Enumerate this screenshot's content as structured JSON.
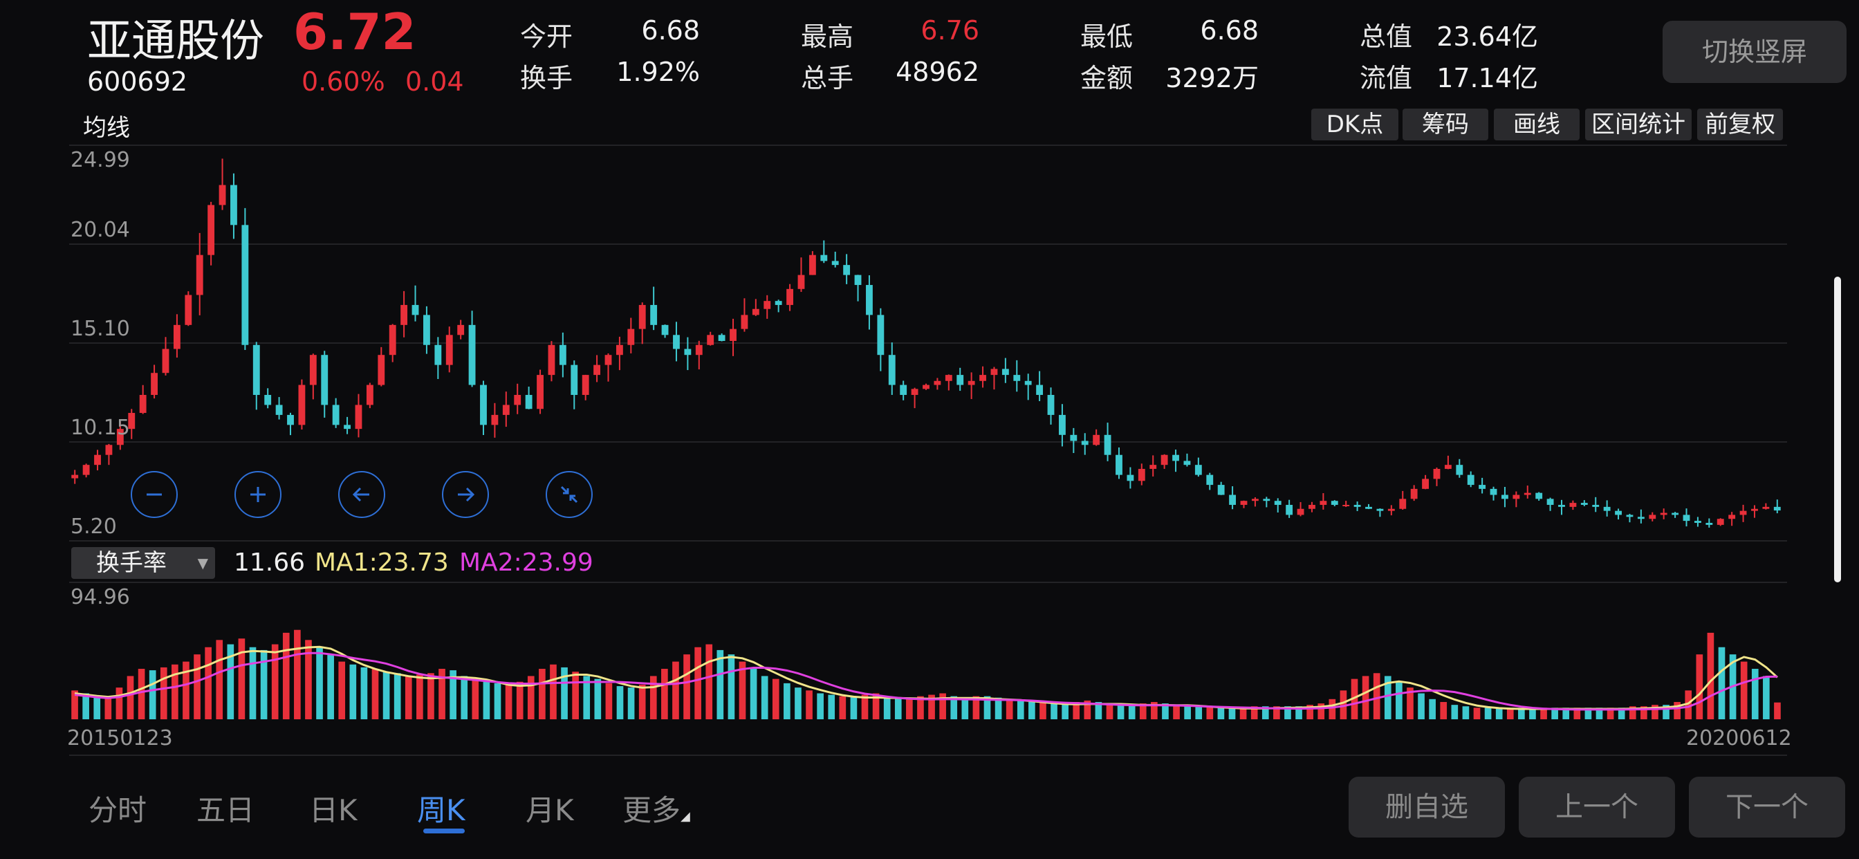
{
  "stock": {
    "name": "亚通股份",
    "price": "6.72",
    "code": "600692",
    "change_pct": "0.60%",
    "change": "0.04"
  },
  "quote": {
    "open_label": "今开",
    "open": "6.68",
    "high_label": "最高",
    "high": "6.76",
    "low_label": "最低",
    "low": "6.68",
    "mktcap_label": "总值",
    "mktcap": "23.64亿",
    "turnover_label": "换手",
    "turnover": "1.92%",
    "volume_label": "总手",
    "volume": "48962",
    "amount_label": "金额",
    "amount": "3292万",
    "float_label": "流值",
    "float": "17.14亿"
  },
  "switch_label": "切换竖屏",
  "ma_label": "均线",
  "tools": [
    "DK点",
    "筹码",
    "画线",
    "区间统计",
    "前复权"
  ],
  "price_axis": [
    "24.99",
    "20.04",
    "15.10",
    "10.15",
    "5.20"
  ],
  "controls": {
    "zoom_out": "minus-circle-icon",
    "zoom_in": "plus-circle-icon",
    "pan_left": "arrow-left-circle-icon",
    "pan_right": "arrow-right-circle-icon",
    "collapse": "collapse-circle-icon"
  },
  "indicator": {
    "name": "换手率",
    "value": "11.66",
    "ma1": "MA1:23.73",
    "ma2": "MA2:23.99",
    "max": "94.96"
  },
  "dates": {
    "start": "20150123",
    "end": "20200612"
  },
  "tabs": [
    "分时",
    "五日",
    "日K",
    "周K",
    "月K",
    "更多"
  ],
  "active_tab": "周K",
  "bottom_buttons": {
    "remove": "删自选",
    "prev": "上一个",
    "next": "下一个"
  },
  "colors": {
    "up": "#e8303a",
    "down": "#3ec9d0",
    "ma1": "#f0e48a",
    "ma2": "#e040e0",
    "accent": "#2e6fd6"
  },
  "chart_data": {
    "type": "candlestick",
    "period": "weekly",
    "ylim": [
      5.2,
      24.99
    ],
    "x_start": "20150123",
    "x_end": "20200612",
    "close_series": [
      8.5,
      9.0,
      9.5,
      10.0,
      10.8,
      11.6,
      12.5,
      13.6,
      14.8,
      16.0,
      17.5,
      19.5,
      22.0,
      23.0,
      21.0,
      15.0,
      12.5,
      12.0,
      11.5,
      11.0,
      13.0,
      14.5,
      12.0,
      11.0,
      10.8,
      12.0,
      13.0,
      14.5,
      16.0,
      17.0,
      16.5,
      15.0,
      14.0,
      15.5,
      16.0,
      13.0,
      11.0,
      11.5,
      12.0,
      12.5,
      11.8,
      13.5,
      15.0,
      14.0,
      12.5,
      13.5,
      14.0,
      14.5,
      15.0,
      15.8,
      17.0,
      16.0,
      15.5,
      14.8,
      14.5,
      15.0,
      15.5,
      15.2,
      15.8,
      16.5,
      16.8,
      17.2,
      17.0,
      17.8,
      18.5,
      19.5,
      19.2,
      19.0,
      18.5,
      18.0,
      16.5,
      14.5,
      13.0,
      12.5,
      12.8,
      13.0,
      13.2,
      13.5,
      13.0,
      13.2,
      13.5,
      13.8,
      13.5,
      13.2,
      13.0,
      12.5,
      11.5,
      10.5,
      10.2,
      10.0,
      10.5,
      9.5,
      8.5,
      8.2,
      8.8,
      9.0,
      9.5,
      9.2,
      9.0,
      8.5,
      8.0,
      7.5,
      7.0,
      7.2,
      7.3,
      7.2,
      7.0,
      6.5,
      6.8,
      7.0,
      7.2,
      7.0,
      7.0,
      6.9,
      6.8,
      6.7,
      6.8,
      7.3,
      7.8,
      8.3,
      8.8,
      9.0,
      8.5,
      8.0,
      7.8,
      7.5,
      7.3,
      7.5,
      7.6,
      7.3,
      7.0,
      6.9,
      7.1,
      7.0,
      6.9,
      6.7,
      6.5,
      6.4,
      6.3,
      6.5,
      6.6,
      6.5,
      6.2,
      6.1,
      6.0,
      6.3,
      6.5,
      6.7,
      6.8,
      6.9,
      6.72
    ],
    "turnover_ylim": [
      0,
      94.96
    ],
    "turnover_values": [
      20,
      18,
      16,
      15,
      22,
      30,
      35,
      34,
      36,
      38,
      40,
      45,
      50,
      55,
      52,
      56,
      50,
      48,
      52,
      60,
      62,
      55,
      50,
      45,
      40,
      38,
      36,
      35,
      33,
      32,
      30,
      31,
      32,
      35,
      34,
      30,
      28,
      26,
      25,
      24,
      26,
      30,
      35,
      38,
      36,
      33,
      30,
      28,
      25,
      23,
      22,
      24,
      30,
      35,
      40,
      45,
      50,
      52,
      48,
      45,
      40,
      35,
      30,
      28,
      25,
      22,
      20,
      18,
      17,
      16,
      16,
      17,
      18,
      16,
      15,
      15,
      16,
      17,
      18,
      16,
      15,
      16,
      16,
      15,
      14,
      13,
      12,
      12,
      11,
      11,
      12,
      13,
      12,
      11,
      11,
      10,
      11,
      12,
      11,
      10,
      10,
      9,
      9,
      8,
      8,
      8,
      9,
      9,
      9,
      9,
      9,
      10,
      11,
      14,
      20,
      28,
      30,
      32,
      30,
      26,
      22,
      18,
      14,
      12,
      10,
      9,
      8,
      8,
      8,
      8,
      8,
      8,
      8,
      8,
      8,
      8,
      8,
      8,
      8,
      8,
      9,
      9,
      10,
      10,
      12,
      20,
      45,
      60,
      50,
      45,
      40,
      35,
      30,
      11.66
    ],
    "ma1": 23.73,
    "ma2": 23.99
  }
}
